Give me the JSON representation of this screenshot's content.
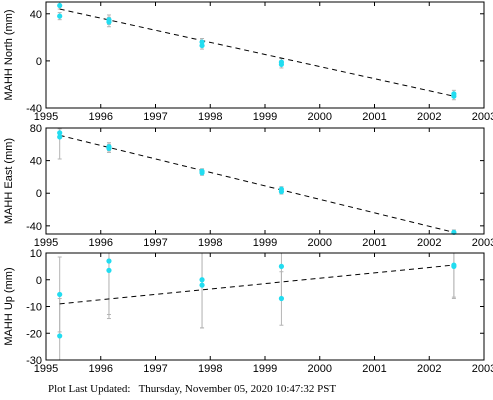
{
  "footer": {
    "label": "Plot Last Updated:",
    "timestamp": "Thursday, November 05, 2020 10:47:32 PST"
  },
  "colors": {
    "point": "#22dcf0",
    "errorbar": "#b4b4b4",
    "trend": "#000000",
    "frame": "#000000"
  },
  "chart_data": [
    {
      "type": "scatter",
      "ylabel": "MAHH North (mm)",
      "xlim": [
        1995,
        2003
      ],
      "ylim": [
        -40,
        50
      ],
      "xticks": [
        1995,
        1996,
        1997,
        1998,
        1999,
        2000,
        2001,
        2002,
        2003
      ],
      "yticks": [
        -40,
        0,
        40
      ],
      "points": [
        {
          "x": 1995.25,
          "y": 47,
          "err": 3
        },
        {
          "x": 1995.25,
          "y": 38,
          "err": 3
        },
        {
          "x": 1996.15,
          "y": 35,
          "err": 4
        },
        {
          "x": 1996.15,
          "y": 33,
          "err": 4
        },
        {
          "x": 1997.85,
          "y": 16,
          "err": 3
        },
        {
          "x": 1997.85,
          "y": 13,
          "err": 3
        },
        {
          "x": 1999.3,
          "y": -1,
          "err": 3
        },
        {
          "x": 1999.3,
          "y": -3,
          "err": 3
        },
        {
          "x": 2002.45,
          "y": -28,
          "err": 3
        },
        {
          "x": 2002.45,
          "y": -30,
          "err": 3
        }
      ],
      "trend": [
        [
          1995.25,
          44
        ],
        [
          2002.45,
          -30
        ]
      ]
    },
    {
      "type": "scatter",
      "ylabel": "MAHH East (mm)",
      "xlim": [
        1995,
        2003
      ],
      "ylim": [
        -50,
        80
      ],
      "xticks": [
        1995,
        1996,
        1997,
        1998,
        1999,
        2000,
        2001,
        2002,
        2003
      ],
      "yticks": [
        -40,
        0,
        40,
        80
      ],
      "points": [
        {
          "x": 1995.25,
          "y": 74,
          "err": 5
        },
        {
          "x": 1995.25,
          "y": 69,
          "err": 27
        },
        {
          "x": 1996.15,
          "y": 57,
          "err": 5
        },
        {
          "x": 1996.15,
          "y": 55,
          "err": 5
        },
        {
          "x": 1997.85,
          "y": 27,
          "err": 3
        },
        {
          "x": 1997.85,
          "y": 25,
          "err": 3
        },
        {
          "x": 1999.3,
          "y": 5,
          "err": 3
        },
        {
          "x": 1999.3,
          "y": 2,
          "err": 3
        },
        {
          "x": 2002.45,
          "y": -48,
          "err": 3
        }
      ],
      "trend": [
        [
          1995.25,
          71
        ],
        [
          2002.45,
          -48
        ]
      ]
    },
    {
      "type": "scatter",
      "ylabel": "MAHH Up (mm)",
      "xlim": [
        1995,
        2003
      ],
      "ylim": [
        -30,
        10
      ],
      "xticks": [
        1995,
        1996,
        1997,
        1998,
        1999,
        2000,
        2001,
        2002,
        2003
      ],
      "yticks": [
        -30,
        -20,
        -10,
        0,
        10
      ],
      "points": [
        {
          "x": 1995.25,
          "y": -5.5,
          "err": 14
        },
        {
          "x": 1995.25,
          "y": -21,
          "err": 14
        },
        {
          "x": 1996.15,
          "y": 7,
          "err": 20
        },
        {
          "x": 1996.15,
          "y": 3.5,
          "err": 18
        },
        {
          "x": 1997.85,
          "y": 0,
          "err": 18
        },
        {
          "x": 1997.85,
          "y": -2,
          "err": 16
        },
        {
          "x": 1999.3,
          "y": 5,
          "err": 12
        },
        {
          "x": 1999.3,
          "y": -7,
          "err": 10
        },
        {
          "x": 2002.45,
          "y": 5.5,
          "err": 12
        },
        {
          "x": 2002.45,
          "y": 5,
          "err": 12
        }
      ],
      "trend": [
        [
          1995.25,
          -9
        ],
        [
          2002.45,
          5.5
        ]
      ]
    }
  ]
}
